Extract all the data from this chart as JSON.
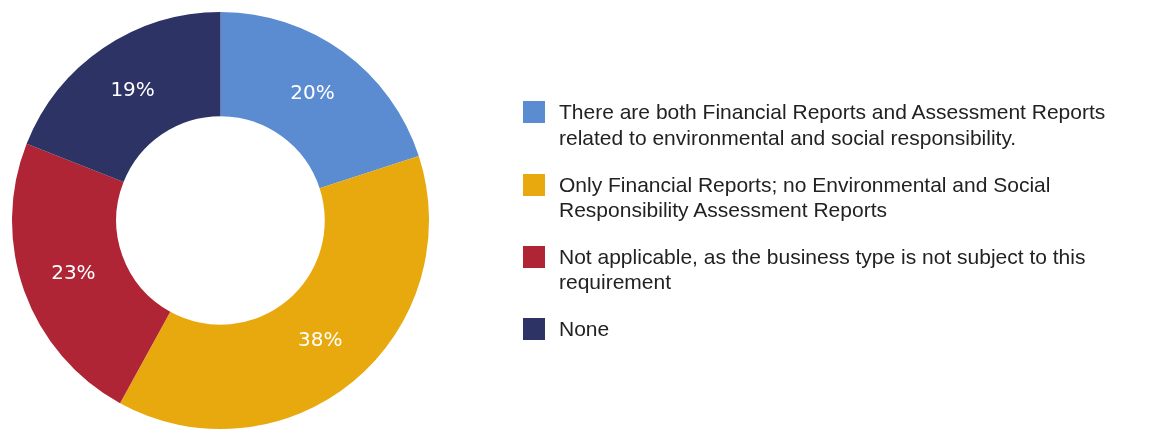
{
  "chart_data": {
    "type": "donut",
    "categories": [
      "There are both Financial Reports and Assessment Reports related to environmental and social responsibility.",
      "Only Financial Reports; no Environmental and Social Responsibility Assessment Reports",
      "Not applicable, as the business type is not subject to this requirement",
      "None"
    ],
    "values": [
      20,
      38,
      23,
      19
    ],
    "colors": [
      "#5b8bd0",
      "#e8a90e",
      "#b02535",
      "#2e3366"
    ],
    "value_labels": [
      "20%",
      "38%",
      "23%",
      "19%"
    ],
    "legend": "right"
  }
}
